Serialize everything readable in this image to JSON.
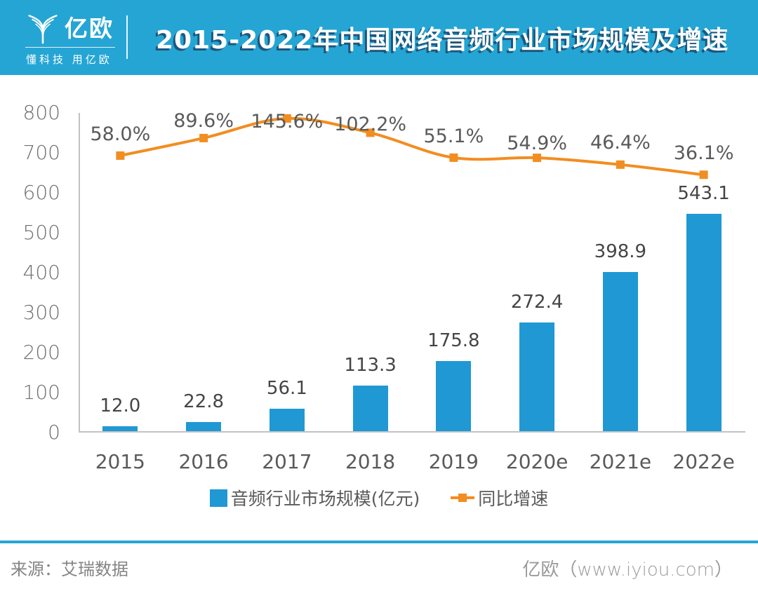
{
  "header": {
    "brand": "亿欧",
    "tagline": "懂科技 用亿欧",
    "title": "2015-2022年中国网络音频行业市场规模及增速"
  },
  "chart_data": {
    "type": "bar+line",
    "title": "2015-2022年中国网络音频行业市场规模及增速",
    "categories": [
      "2015",
      "2016",
      "2017",
      "2018",
      "2019",
      "2020e",
      "2021e",
      "2022e"
    ],
    "series": [
      {
        "name": "音频行业市场规模(亿元)",
        "type": "bar",
        "values": [
          12.0,
          22.8,
          56.1,
          113.3,
          175.8,
          272.4,
          398.9,
          543.1
        ],
        "data_labels": [
          "12.0",
          "22.8",
          "56.1",
          "113.3",
          "175.8",
          "272.4",
          "398.9",
          "543.1"
        ]
      },
      {
        "name": "同比增速",
        "type": "line",
        "values": [
          58.0,
          89.6,
          145.6,
          102.2,
          55.1,
          54.9,
          46.4,
          36.1
        ],
        "data_labels": [
          "58.0%",
          "89.6%",
          "145.6%",
          "102.2%",
          "55.1%",
          "54.9%",
          "46.4%",
          "36.1%"
        ]
      }
    ],
    "y_axis": {
      "min": 0,
      "max": 800,
      "step": 100,
      "ticks": [
        "800",
        "700",
        "600",
        "500",
        "400",
        "300",
        "200",
        "100",
        "0"
      ]
    },
    "grid": false,
    "legend_position": "bottom"
  },
  "footer": {
    "source": "来源：艾瑞数据",
    "brand": "亿欧（www.iyiou.com）"
  },
  "colors": {
    "accent_cyan": "#25A5D4",
    "bar_blue": "#2098D3",
    "line_orange": "#F28D21",
    "axis_grey": "#C2C2C2",
    "title_shadow_navy": "#1D567C"
  }
}
